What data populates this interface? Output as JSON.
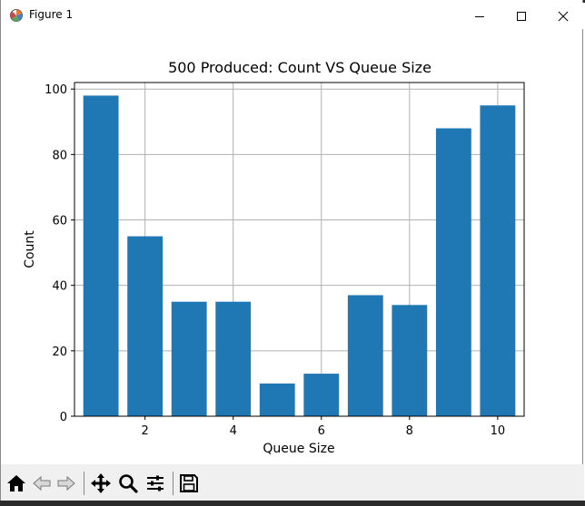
{
  "window": {
    "title": "Figure 1"
  },
  "chart_data": {
    "type": "bar",
    "title": "500 Produced: Count VS Queue Size",
    "xlabel": "Queue Size",
    "ylabel": "Count",
    "x": [
      1,
      2,
      3,
      4,
      5,
      6,
      7,
      8,
      9,
      10
    ],
    "values": [
      98,
      55,
      35,
      35,
      10,
      13,
      37,
      34,
      88,
      95
    ],
    "xlim": [
      0.4,
      10.6
    ],
    "ylim": [
      0,
      102
    ],
    "xticks": [
      2,
      4,
      6,
      8,
      10
    ],
    "yticks": [
      0,
      20,
      40,
      60,
      80,
      100
    ],
    "grid": true,
    "bar_color": "#1f77b4"
  },
  "toolbar": {
    "buttons": [
      "home-icon",
      "back-icon",
      "forward-icon",
      "pan-icon",
      "zoom-icon",
      "configure-subplots-icon",
      "save-icon"
    ]
  }
}
